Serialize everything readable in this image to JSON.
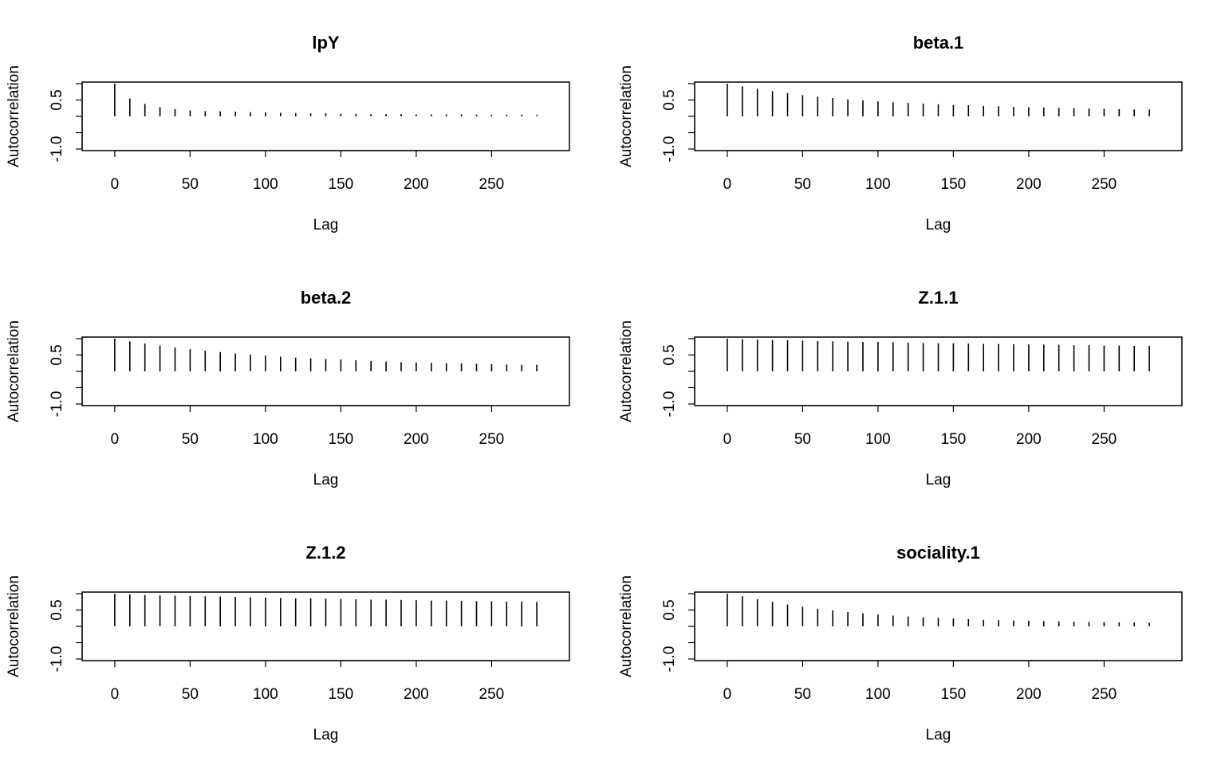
{
  "chart_data": [
    {
      "type": "bar",
      "title": "lpY",
      "xlabel": "Lag",
      "ylabel": "Autocorrelation",
      "xlim": [
        -10,
        290
      ],
      "ylim": [
        -1,
        1
      ],
      "xticks": [
        0,
        50,
        100,
        150,
        200,
        250
      ],
      "xtick_labels": [
        "0",
        "50",
        "100",
        "150",
        "200",
        "250"
      ],
      "yticks": [
        -1,
        0.5
      ],
      "ytick_labels": [
        "-1.0",
        "0.5"
      ],
      "grid": false,
      "x": [
        0,
        10,
        20,
        30,
        40,
        50,
        60,
        70,
        80,
        90,
        100,
        110,
        120,
        130,
        140,
        150,
        160,
        170,
        180,
        190,
        200,
        210,
        220,
        230,
        240,
        250,
        260,
        270,
        280
      ],
      "values": [
        1.0,
        0.55,
        0.38,
        0.28,
        0.22,
        0.18,
        0.16,
        0.15,
        0.14,
        0.13,
        0.12,
        0.11,
        0.1,
        0.09,
        0.09,
        0.08,
        0.08,
        0.07,
        0.07,
        0.07,
        0.06,
        0.06,
        0.06,
        0.06,
        0.05,
        0.05,
        0.05,
        0.05,
        0.04
      ]
    },
    {
      "type": "bar",
      "title": "beta.1",
      "xlabel": "Lag",
      "ylabel": "Autocorrelation",
      "xlim": [
        -10,
        290
      ],
      "ylim": [
        -1,
        1
      ],
      "xticks": [
        0,
        50,
        100,
        150,
        200,
        250
      ],
      "xtick_labels": [
        "0",
        "50",
        "100",
        "150",
        "200",
        "250"
      ],
      "yticks": [
        -1,
        0.5
      ],
      "ytick_labels": [
        "-1.0",
        "0.5"
      ],
      "grid": false,
      "x": [
        0,
        10,
        20,
        30,
        40,
        50,
        60,
        70,
        80,
        90,
        100,
        110,
        120,
        130,
        140,
        150,
        160,
        170,
        180,
        190,
        200,
        210,
        220,
        230,
        240,
        250,
        260,
        270,
        280
      ],
      "values": [
        1.0,
        0.92,
        0.84,
        0.77,
        0.71,
        0.65,
        0.6,
        0.56,
        0.52,
        0.49,
        0.46,
        0.43,
        0.41,
        0.39,
        0.37,
        0.35,
        0.34,
        0.32,
        0.31,
        0.29,
        0.28,
        0.27,
        0.26,
        0.25,
        0.24,
        0.23,
        0.22,
        0.21,
        0.21
      ]
    },
    {
      "type": "bar",
      "title": "beta.2",
      "xlabel": "Lag",
      "ylabel": "Autocorrelation",
      "xlim": [
        -10,
        290
      ],
      "ylim": [
        -1,
        1
      ],
      "xticks": [
        0,
        50,
        100,
        150,
        200,
        250
      ],
      "xtick_labels": [
        "0",
        "50",
        "100",
        "150",
        "200",
        "250"
      ],
      "yticks": [
        -1,
        0.5
      ],
      "ytick_labels": [
        "-1.0",
        "0.5"
      ],
      "grid": false,
      "x": [
        0,
        10,
        20,
        30,
        40,
        50,
        60,
        70,
        80,
        90,
        100,
        110,
        120,
        130,
        140,
        150,
        160,
        170,
        180,
        190,
        200,
        210,
        220,
        230,
        240,
        250,
        260,
        270,
        280
      ],
      "values": [
        1.0,
        0.92,
        0.85,
        0.79,
        0.73,
        0.68,
        0.63,
        0.59,
        0.55,
        0.51,
        0.48,
        0.45,
        0.42,
        0.4,
        0.38,
        0.36,
        0.34,
        0.32,
        0.3,
        0.28,
        0.27,
        0.26,
        0.25,
        0.24,
        0.23,
        0.22,
        0.21,
        0.2,
        0.2
      ]
    },
    {
      "type": "bar",
      "title": "Z.1.1",
      "xlabel": "Lag",
      "ylabel": "Autocorrelation",
      "xlim": [
        -10,
        290
      ],
      "ylim": [
        -1,
        1
      ],
      "xticks": [
        0,
        50,
        100,
        150,
        200,
        250
      ],
      "xtick_labels": [
        "0",
        "50",
        "100",
        "150",
        "200",
        "250"
      ],
      "yticks": [
        -1,
        0.5
      ],
      "ytick_labels": [
        "-1.0",
        "0.5"
      ],
      "grid": false,
      "x": [
        0,
        10,
        20,
        30,
        40,
        50,
        60,
        70,
        80,
        90,
        100,
        110,
        120,
        130,
        140,
        150,
        160,
        170,
        180,
        190,
        200,
        210,
        220,
        230,
        240,
        250,
        260,
        270,
        280
      ],
      "values": [
        1.0,
        0.98,
        0.97,
        0.96,
        0.95,
        0.94,
        0.93,
        0.92,
        0.91,
        0.9,
        0.9,
        0.89,
        0.88,
        0.87,
        0.86,
        0.86,
        0.85,
        0.84,
        0.84,
        0.83,
        0.82,
        0.82,
        0.81,
        0.8,
        0.8,
        0.79,
        0.79,
        0.78,
        0.78
      ]
    },
    {
      "type": "bar",
      "title": "Z.1.2",
      "xlabel": "Lag",
      "ylabel": "Autocorrelation",
      "xlim": [
        -10,
        290
      ],
      "ylim": [
        -1,
        1
      ],
      "xticks": [
        0,
        50,
        100,
        150,
        200,
        250
      ],
      "xtick_labels": [
        "0",
        "50",
        "100",
        "150",
        "200",
        "250"
      ],
      "yticks": [
        -1,
        0.5
      ],
      "ytick_labels": [
        "-1.0",
        "0.5"
      ],
      "grid": false,
      "x": [
        0,
        10,
        20,
        30,
        40,
        50,
        60,
        70,
        80,
        90,
        100,
        110,
        120,
        130,
        140,
        150,
        160,
        170,
        180,
        190,
        200,
        210,
        220,
        230,
        240,
        250,
        260,
        270,
        280
      ],
      "values": [
        1.0,
        0.98,
        0.96,
        0.95,
        0.94,
        0.93,
        0.92,
        0.91,
        0.9,
        0.89,
        0.88,
        0.87,
        0.86,
        0.86,
        0.85,
        0.84,
        0.83,
        0.82,
        0.82,
        0.81,
        0.8,
        0.79,
        0.79,
        0.78,
        0.77,
        0.77,
        0.76,
        0.76,
        0.75
      ]
    },
    {
      "type": "bar",
      "title": "sociality.1",
      "xlabel": "Lag",
      "ylabel": "Autocorrelation",
      "xlim": [
        -10,
        290
      ],
      "ylim": [
        -1,
        1
      ],
      "xticks": [
        0,
        50,
        100,
        150,
        200,
        250
      ],
      "xtick_labels": [
        "0",
        "50",
        "100",
        "150",
        "200",
        "250"
      ],
      "yticks": [
        -1,
        0.5
      ],
      "ytick_labels": [
        "-1.0",
        "0.5"
      ],
      "grid": false,
      "x": [
        0,
        10,
        20,
        30,
        40,
        50,
        60,
        70,
        80,
        90,
        100,
        110,
        120,
        130,
        140,
        150,
        160,
        170,
        180,
        190,
        200,
        210,
        220,
        230,
        240,
        250,
        260,
        270,
        280
      ],
      "values": [
        1.0,
        0.92,
        0.83,
        0.75,
        0.67,
        0.6,
        0.54,
        0.49,
        0.44,
        0.4,
        0.36,
        0.33,
        0.3,
        0.28,
        0.26,
        0.24,
        0.22,
        0.2,
        0.19,
        0.18,
        0.17,
        0.16,
        0.15,
        0.14,
        0.13,
        0.13,
        0.12,
        0.12,
        0.11
      ]
    }
  ]
}
